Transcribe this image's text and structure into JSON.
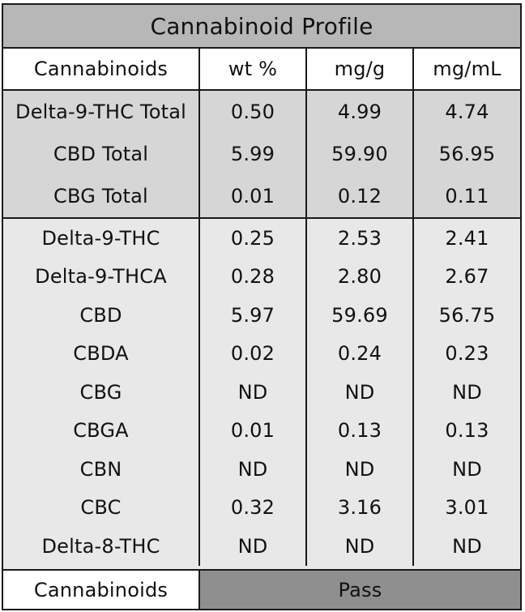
{
  "title": "Cannabinoid Profile",
  "headers": [
    "Cannabinoids",
    "wt %",
    "mg/g",
    "mg/mL"
  ],
  "totals": [
    {
      "name": "Delta-9-THC Total",
      "wt": "0.50",
      "mg_g": "4.99",
      "mg_ml": "4.74"
    },
    {
      "name": "CBD Total",
      "wt": "5.99",
      "mg_g": "59.90",
      "mg_ml": "56.95"
    },
    {
      "name": "CBG Total",
      "wt": "0.01",
      "mg_g": "0.12",
      "mg_ml": "0.11"
    }
  ],
  "details": [
    {
      "name": "Delta-9-THC",
      "wt": "0.25",
      "mg_g": "2.53",
      "mg_ml": "2.41"
    },
    {
      "name": "Delta-9-THCA",
      "wt": "0.28",
      "mg_g": "2.80",
      "mg_ml": "2.67"
    },
    {
      "name": "CBD",
      "wt": "5.97",
      "mg_g": "59.69",
      "mg_ml": "56.75"
    },
    {
      "name": "CBDA",
      "wt": "0.02",
      "mg_g": "0.24",
      "mg_ml": "0.23"
    },
    {
      "name": "CBG",
      "wt": "ND",
      "mg_g": "ND",
      "mg_ml": "ND"
    },
    {
      "name": "CBGA",
      "wt": "0.01",
      "mg_g": "0.13",
      "mg_ml": "0.13"
    },
    {
      "name": "CBN",
      "wt": "ND",
      "mg_g": "ND",
      "mg_ml": "ND"
    },
    {
      "name": "CBC",
      "wt": "0.32",
      "mg_g": "3.16",
      "mg_ml": "3.01"
    },
    {
      "name": "Delta-8-THC",
      "wt": "ND",
      "mg_g": "ND",
      "mg_ml": "ND"
    }
  ],
  "footer": {
    "label": "Cannabinoids",
    "result": "Pass"
  },
  "colors": {
    "title_bg": "#b7b7b7",
    "totals_bg": "#d6d6d6",
    "detail_bg": "#e8e8e8",
    "pass_bg": "#8f8f8f",
    "border": "#1a1a1a"
  }
}
